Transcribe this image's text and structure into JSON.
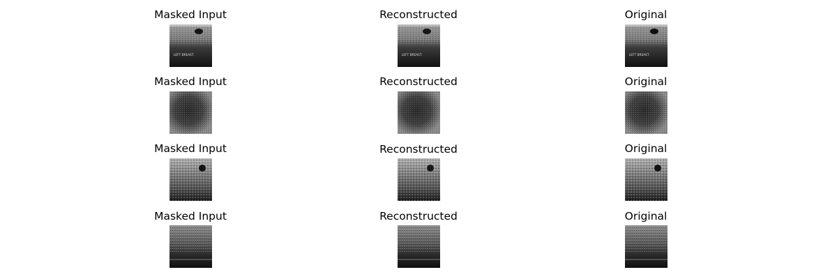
{
  "figure": {
    "column_titles": [
      "Masked Input",
      "Reconstructed",
      "Original"
    ],
    "rows": [
      {
        "burned_in_text": "LEFT BREAST.",
        "tone": "light-top-dark-bottom"
      },
      {
        "burned_in_text": "",
        "tone": "dark-mass-center"
      },
      {
        "burned_in_text": "",
        "tone": "mottled-dark-spot-upper-right"
      },
      {
        "burned_in_text": "",
        "tone": "dark-lower-band"
      }
    ],
    "colors": {
      "background": "#ffffff",
      "title_text": "#000000"
    }
  }
}
